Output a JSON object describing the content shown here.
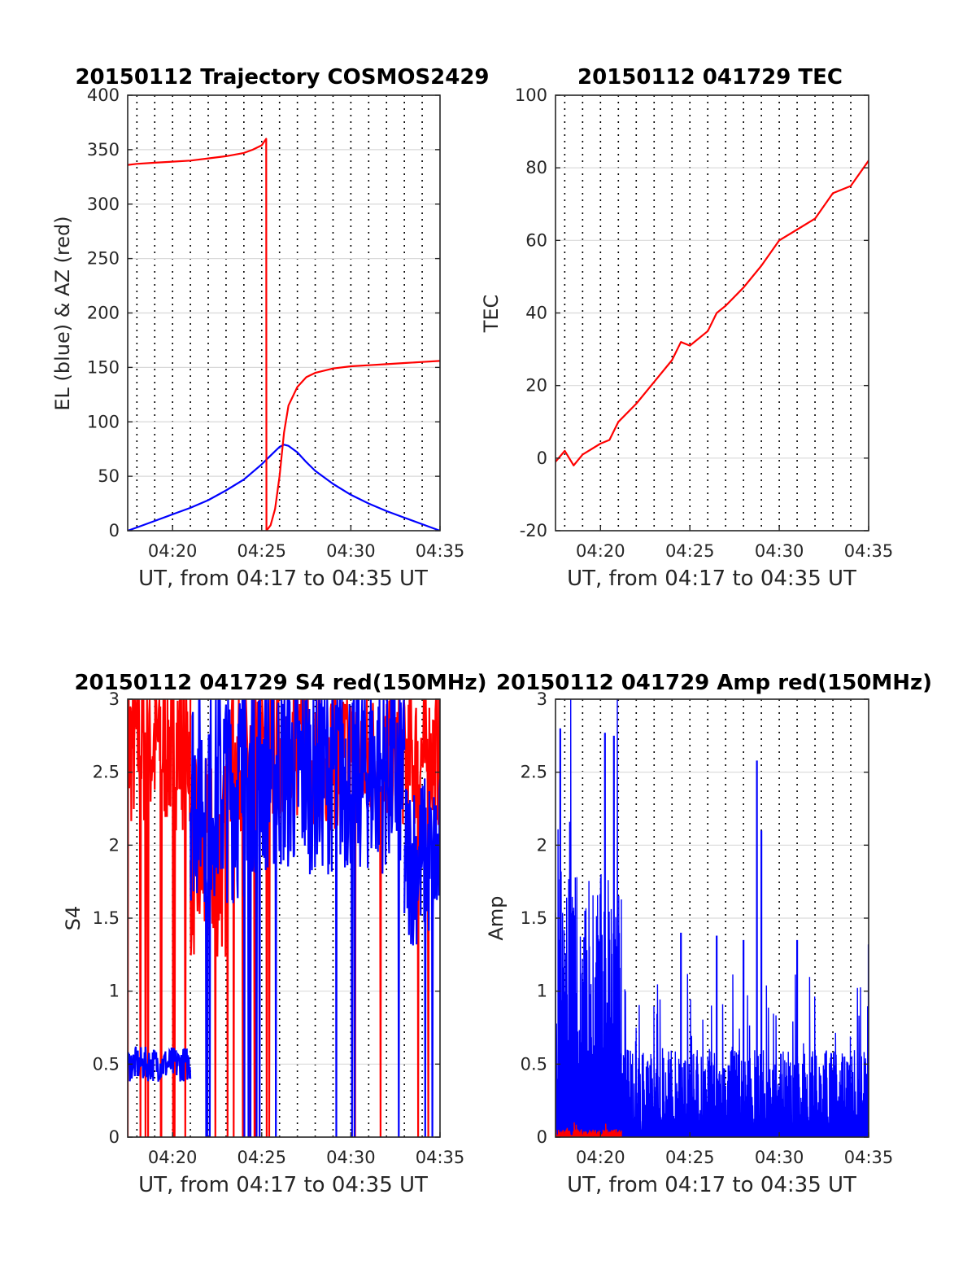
{
  "colors": {
    "el": "#0000ff",
    "az": "#ff0000",
    "tec": "#ff0000",
    "s4_red": "#ff0000",
    "s4_blue": "#0000ff",
    "amp_red": "#ff0000",
    "amp_blue": "#0000ff"
  },
  "chart_data": [
    {
      "id": "trajectory",
      "type": "line",
      "title": "20150112 Trajectory COSMOS2429",
      "xlabel": "UT, from 04:17 to 04:35 UT",
      "ylabel": "EL (blue) & AZ (red)",
      "xlim": [
        "04:17:29",
        "04:35:00"
      ],
      "ylim": [
        0,
        400
      ],
      "xticks": [
        "04:20",
        "04:25",
        "04:30",
        "04:35"
      ],
      "yticks": [
        0,
        50,
        100,
        150,
        200,
        250,
        300,
        350,
        400
      ],
      "grid": "dotted vertical lines every minute, dotted horizontal lines at y ticks",
      "series": [
        {
          "color": "#0000ff",
          "x": [
            "04:17:29",
            "04:18:00",
            "04:19:00",
            "04:20:00",
            "04:21:00",
            "04:22:00",
            "04:23:00",
            "04:24:00",
            "04:25:00",
            "04:25:30",
            "04:26:00",
            "04:26:15",
            "04:26:30",
            "04:27:00",
            "04:27:30",
            "04:28:00",
            "04:29:00",
            "04:30:00",
            "04:31:00",
            "04:32:00",
            "04:33:00",
            "04:34:00",
            "04:35:00"
          ],
          "y": [
            0,
            3,
            9,
            15,
            21,
            28,
            37,
            47,
            61,
            69,
            77,
            79,
            78,
            72,
            63,
            55,
            43,
            33,
            25,
            18,
            12,
            6,
            0
          ]
        },
        {
          "color": "#ff0000",
          "x": [
            "04:17:29",
            "04:18:00",
            "04:19:00",
            "04:20:00",
            "04:21:00",
            "04:22:00",
            "04:23:00",
            "04:24:00",
            "04:24:30",
            "04:25:00",
            "04:25:15",
            "04:25:16",
            "04:25:30",
            "04:25:45",
            "04:26:00",
            "04:26:15",
            "04:26:30",
            "04:27:00",
            "04:27:30",
            "04:28:00",
            "04:29:00",
            "04:30:00",
            "04:31:00",
            "04:32:00",
            "04:33:00",
            "04:34:00",
            "04:35:00"
          ],
          "y": [
            336,
            337,
            338,
            339,
            340,
            342,
            344,
            347,
            350,
            354,
            360,
            0,
            5,
            20,
            50,
            90,
            115,
            132,
            141,
            145,
            149,
            151,
            152,
            153,
            154,
            155,
            156
          ]
        }
      ]
    },
    {
      "id": "tec",
      "type": "line",
      "title": "20150112 041729 TEC",
      "xlabel": "UT, from 04:17 to 04:35 UT",
      "ylabel": "TEC",
      "xlim": [
        "04:17:29",
        "04:35:00"
      ],
      "ylim": [
        -20,
        100
      ],
      "xticks": [
        "04:20",
        "04:25",
        "04:30",
        "04:35"
      ],
      "yticks": [
        -20,
        0,
        20,
        40,
        60,
        80,
        100
      ],
      "series": [
        {
          "color": "#ff0000",
          "x": [
            "04:17:29",
            "04:18:00",
            "04:18:30",
            "04:19:00",
            "04:20:00",
            "04:20:30",
            "04:21:00",
            "04:22:00",
            "04:23:00",
            "04:24:00",
            "04:24:30",
            "04:25:00",
            "04:26:00",
            "04:26:30",
            "04:27:00",
            "04:28:00",
            "04:29:00",
            "04:30:00",
            "04:31:00",
            "04:32:00",
            "04:33:00",
            "04:34:00",
            "04:35:00"
          ],
          "y": [
            -1,
            2,
            -2,
            1,
            4,
            5,
            10,
            15,
            21,
            27,
            32,
            31,
            35,
            40,
            42,
            47,
            53,
            60,
            63,
            66,
            73,
            75,
            82
          ]
        }
      ]
    },
    {
      "id": "s4",
      "type": "line",
      "title": "20150112 041729 S4 red(150MHz)",
      "xlabel": "UT, from 04:17 to 04:35 UT",
      "ylabel": "S4",
      "xlim": [
        "04:17:29",
        "04:35:00"
      ],
      "ylim": [
        0,
        3
      ],
      "xticks": [
        "04:20",
        "04:25",
        "04:30",
        "04:35"
      ],
      "yticks": [
        0,
        0.5,
        1,
        1.5,
        2,
        2.5,
        3
      ],
      "series": [
        {
          "color": "#ff0000",
          "segments": [
            {
              "x": [
                "04:17:29",
                "04:21:00"
              ],
              "base": 2.7,
              "spread": 0.6,
              "drops": 10
            },
            {
              "x": [
                "04:21:00",
                "04:23:00"
              ],
              "base": 1.9,
              "spread": 0.7,
              "drops": 2
            },
            {
              "x": [
                "04:23:00",
                "04:35:00"
              ],
              "base": 2.6,
              "spread": 0.5,
              "drops": 14
            }
          ]
        },
        {
          "color": "#0000ff",
          "segments": [
            {
              "x": [
                "04:17:29",
                "04:21:00"
              ],
              "base": 0.5,
              "spread": 0.12,
              "drops": 0
            },
            {
              "x": [
                "04:21:00",
                "04:24:00"
              ],
              "base": 2.4,
              "spread": 0.8,
              "drops": 3
            },
            {
              "x": [
                "04:24:00",
                "04:33:00"
              ],
              "base": 2.5,
              "spread": 0.7,
              "drops": 10
            },
            {
              "x": [
                "04:33:00",
                "04:35:00"
              ],
              "base": 1.9,
              "spread": 0.6,
              "drops": 2
            }
          ]
        }
      ]
    },
    {
      "id": "amp",
      "type": "line",
      "title": "20150112 041729 Amp red(150MHz)",
      "xlabel": "UT, from 04:17 to 04:35 UT",
      "ylabel": "Amp",
      "xlim": [
        "04:17:29",
        "04:35:00"
      ],
      "ylim": [
        0,
        3
      ],
      "xticks": [
        "04:20",
        "04:25",
        "04:30",
        "04:35"
      ],
      "yticks": [
        0,
        0.5,
        1,
        1.5,
        2,
        2.5,
        3
      ],
      "series": [
        {
          "color": "#0000ff",
          "segments": [
            {
              "x": [
                "04:17:29",
                "04:21:10"
              ],
              "base": 1.1,
              "spread": 1.6,
              "drops": 0
            },
            {
              "x": [
                "04:21:10",
                "04:35:00"
              ],
              "base": 0.25,
              "spread": 0.55,
              "drops": 0
            }
          ],
          "peaks": [
            {
              "x": "04:17:45",
              "y": 2.8
            },
            {
              "x": "04:20:15",
              "y": 2.77
            },
            {
              "x": "04:20:45",
              "y": 2.75
            },
            {
              "x": "04:28:45",
              "y": 2.58
            },
            {
              "x": "04:29:00",
              "y": 2.1
            },
            {
              "x": "04:24:30",
              "y": 1.4
            },
            {
              "x": "04:26:30",
              "y": 1.38
            },
            {
              "x": "04:28:00",
              "y": 1.35
            },
            {
              "x": "04:31:00",
              "y": 1.35
            },
            {
              "x": "04:35:00",
              "y": 1.32
            }
          ]
        },
        {
          "color": "#ff0000",
          "segments": [
            {
              "x": [
                "04:17:29",
                "04:21:10"
              ],
              "base": 0.02,
              "spread": 0.05,
              "drops": 0
            }
          ]
        }
      ]
    }
  ]
}
